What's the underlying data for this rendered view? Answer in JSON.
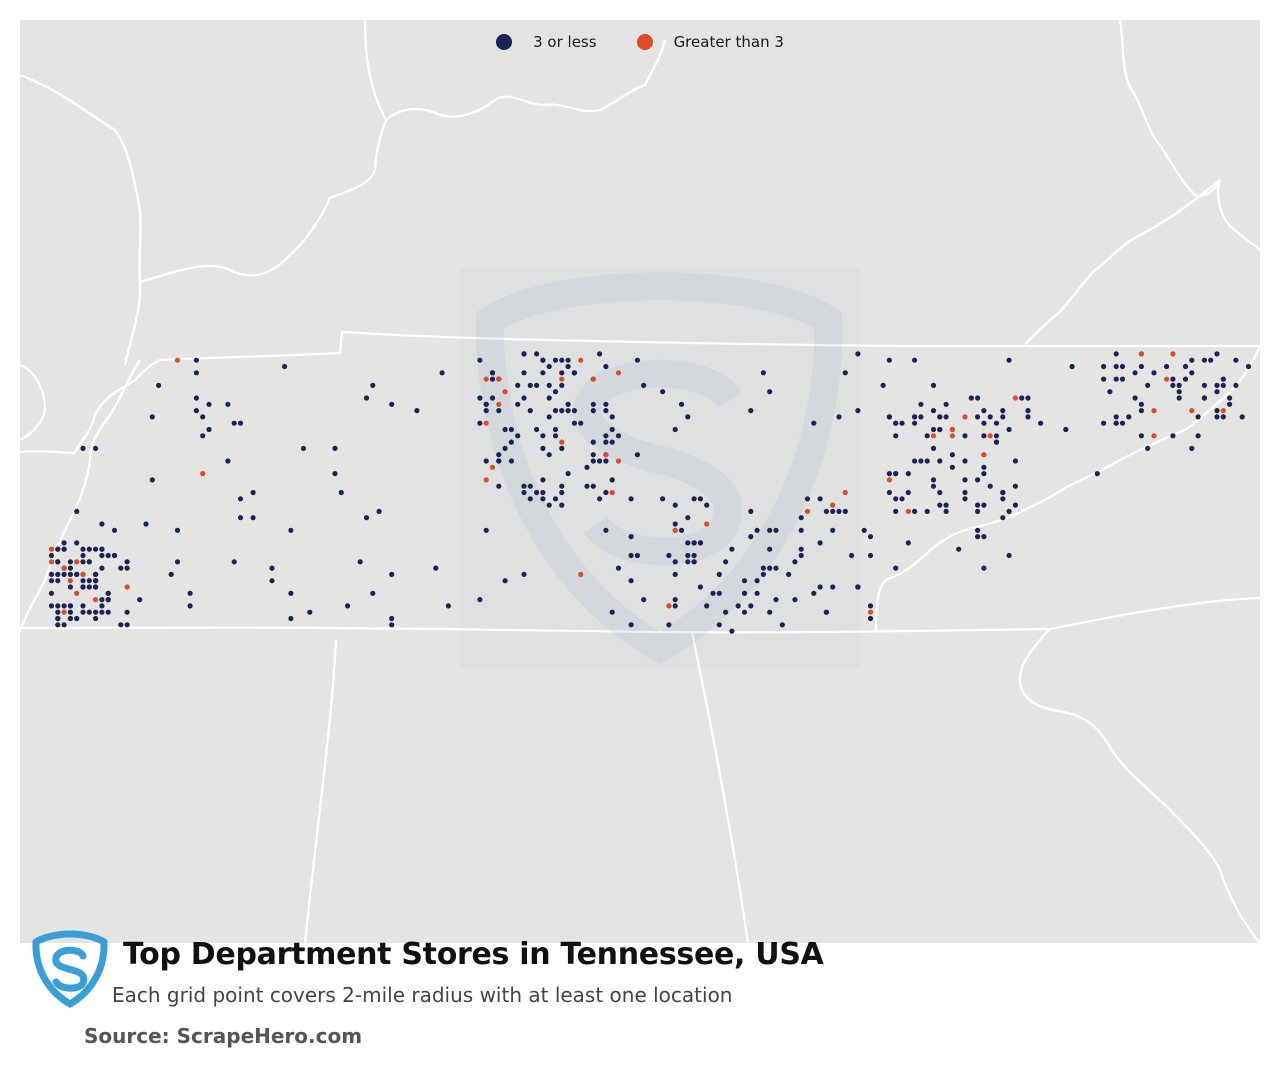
{
  "title": "Top Department Stores in Tennessee, USA",
  "subtitle": "Each grid point covers 2-mile radius with at least one location",
  "source": "Source: ScrapeHero.com",
  "legend": [
    {
      "label": "3 or less",
      "color": "#1b2358"
    },
    {
      "label": "Greater than 3",
      "color": "#e04a25"
    }
  ],
  "colors": {
    "map_background": "#e4e4e2",
    "boundary": "#ffffff",
    "low": "#1b2358",
    "high": "#e04a25",
    "logo": "#3a9fd6"
  },
  "icons": [
    "scrapehero-logo-icon",
    "watermark-logo-icon"
  ],
  "map_data": {
    "type": "dot-density",
    "region": "Tennessee",
    "clusters": [
      {
        "name": "west",
        "n_low": 80,
        "n_high": 10
      },
      {
        "name": "central",
        "n_low": 95,
        "n_high": 14
      },
      {
        "name": "middle-east",
        "n_low": 70,
        "n_high": 6
      },
      {
        "name": "east",
        "n_low": 75,
        "n_high": 10
      },
      {
        "name": "north-east",
        "n_low": 45,
        "n_high": 6
      },
      {
        "name": "scatter",
        "n_low": 150,
        "n_high": 6
      }
    ]
  }
}
